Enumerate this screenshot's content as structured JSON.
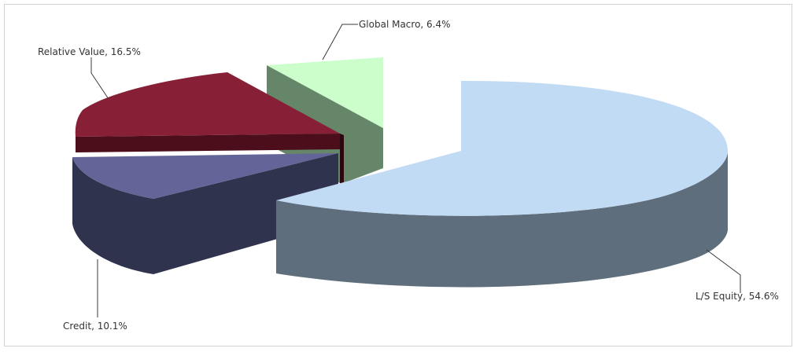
{
  "chart_data": {
    "type": "pie",
    "variant": "3d-exploded",
    "title": "",
    "labels": [
      "L/S Equity",
      "Credit",
      "Relative Value",
      "Global Macro"
    ],
    "values": [
      54.6,
      10.1,
      16.5,
      6.4
    ],
    "data_labels": [
      "L/S Equity, 54.6%",
      "Credit, 10.1%",
      "Relative Value, 16.5%",
      "Global Macro, 6.4%"
    ],
    "colors": {
      "ls_equity": {
        "top": "#c2dbf4",
        "side": "#5f6e7c"
      },
      "credit": {
        "top": "#636598",
        "side": "#30334e"
      },
      "relative_value": {
        "top": "#872036",
        "side": "#4c0e1a"
      },
      "global_macro": {
        "top": "#cbfecb",
        "side": "#66866a"
      }
    },
    "legend": "none"
  }
}
